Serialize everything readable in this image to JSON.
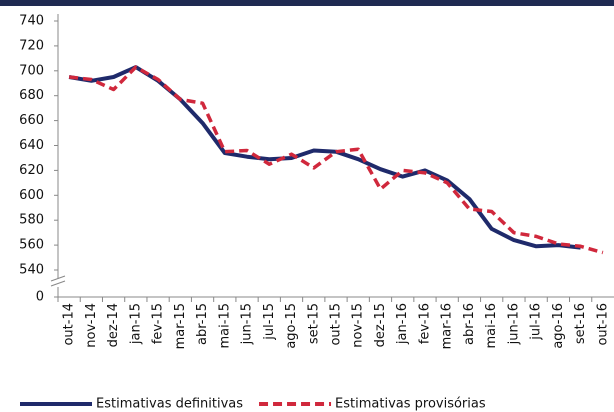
{
  "chart_data": {
    "type": "line",
    "categories": [
      "out-14",
      "nov-14",
      "dez-14",
      "jan-15",
      "fev-15",
      "mar-15",
      "abr-15",
      "mai-15",
      "jun-15",
      "jul-15",
      "ago-15",
      "set-15",
      "out-15",
      "nov-15",
      "dez-15",
      "jan-16",
      "fev-16",
      "mar-16",
      "abr-16",
      "mai-16",
      "jun-16",
      "jul-16",
      "ago-16",
      "set-16",
      "out-16"
    ],
    "series": [
      {
        "name": "Estimativas definitivas",
        "color": "#1f2a6b",
        "style": "solid",
        "values": [
          695,
          692,
          695,
          703,
          692,
          677,
          658,
          634,
          631,
          629,
          630,
          636,
          635,
          629,
          621,
          615,
          620,
          612,
          597,
          573,
          564,
          559,
          560,
          558,
          null
        ]
      },
      {
        "name": "Estimativas provisórias",
        "color": "#d0283c",
        "style": "dashed",
        "values": [
          695,
          693,
          685,
          703,
          693,
          677,
          674,
          635,
          636,
          625,
          633,
          622,
          635,
          637,
          605,
          620,
          618,
          610,
          589,
          587,
          570,
          567,
          561,
          559,
          554
        ]
      }
    ],
    "ylim": [
      0,
      740
    ],
    "y_break": [
      0,
      540
    ],
    "yticks": [
      0,
      540,
      560,
      580,
      600,
      620,
      640,
      660,
      680,
      700,
      720,
      740
    ],
    "grid": false,
    "legend": "bottom"
  }
}
